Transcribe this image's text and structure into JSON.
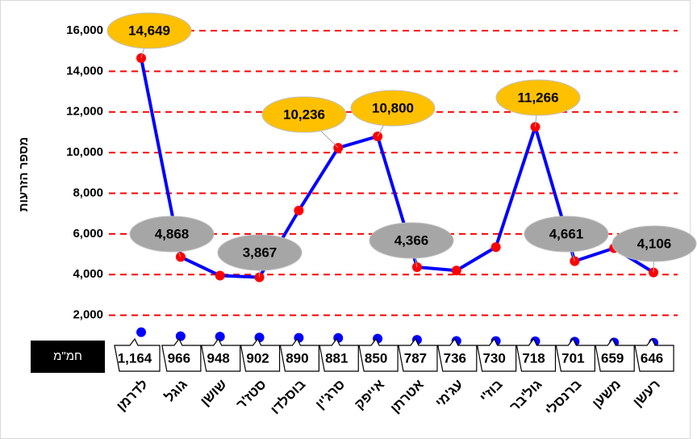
{
  "chart_data": {
    "type": "line",
    "y_label": "מספר הזרעות",
    "categories": [
      "לדרמן",
      "גוגל",
      "שושן",
      "סטז'ר",
      "בוסלדו",
      "סרג'ין",
      "אייפק",
      "אטרתן",
      "עג'מי",
      "בוז'י",
      "גול'בר",
      "ברנסלי",
      "משען",
      "רעשן"
    ],
    "series": [
      {
        "line_color": "#0000ff",
        "color": "#ff0000",
        "values": [
          14649,
          4868,
          3950,
          3867,
          7150,
          10236,
          10800,
          4366,
          4200,
          5350,
          11266,
          4661,
          5300,
          4106
        ],
        "value_labels": [
          "14,649",
          "4,868",
          null,
          "3,867",
          null,
          "10,236",
          "10,800",
          "4,366",
          null,
          null,
          "11,266",
          "4,661",
          null,
          "4,106"
        ],
        "value_label_colors": [
          "#ffc000",
          "#a6a6a6",
          null,
          "#a6a6a6",
          null,
          "#ffc000",
          "#ffc000",
          "#a6a6a6",
          null,
          null,
          "#ffc000",
          "#a6a6a6",
          null,
          "#a6a6a6"
        ]
      },
      {
        "name": "חמ\"מ",
        "color": "#0000ff",
        "values": [
          1164,
          966,
          948,
          902,
          890,
          881,
          850,
          787,
          736,
          730,
          718,
          701,
          659,
          646
        ],
        "value_labels": [
          "1,164",
          "966",
          "948",
          "902",
          "890",
          "881",
          "850",
          "787",
          "736",
          "730",
          "718",
          "701",
          "659",
          "646"
        ]
      }
    ],
    "ylim": [
      0,
      16000
    ],
    "yticks": [
      {
        "value": 2000,
        "label": "2,000"
      },
      {
        "value": 4000,
        "label": "4,000"
      },
      {
        "value": 6000,
        "label": "6,000"
      },
      {
        "value": 8000,
        "label": "8,000"
      },
      {
        "value": 10000,
        "label": "10,000"
      },
      {
        "value": 12000,
        "label": "12,000"
      },
      {
        "value": 14000,
        "label": "14,000"
      },
      {
        "value": 16000,
        "label": "16,000"
      }
    ],
    "grid": true,
    "grid_color": "#ff0000"
  }
}
